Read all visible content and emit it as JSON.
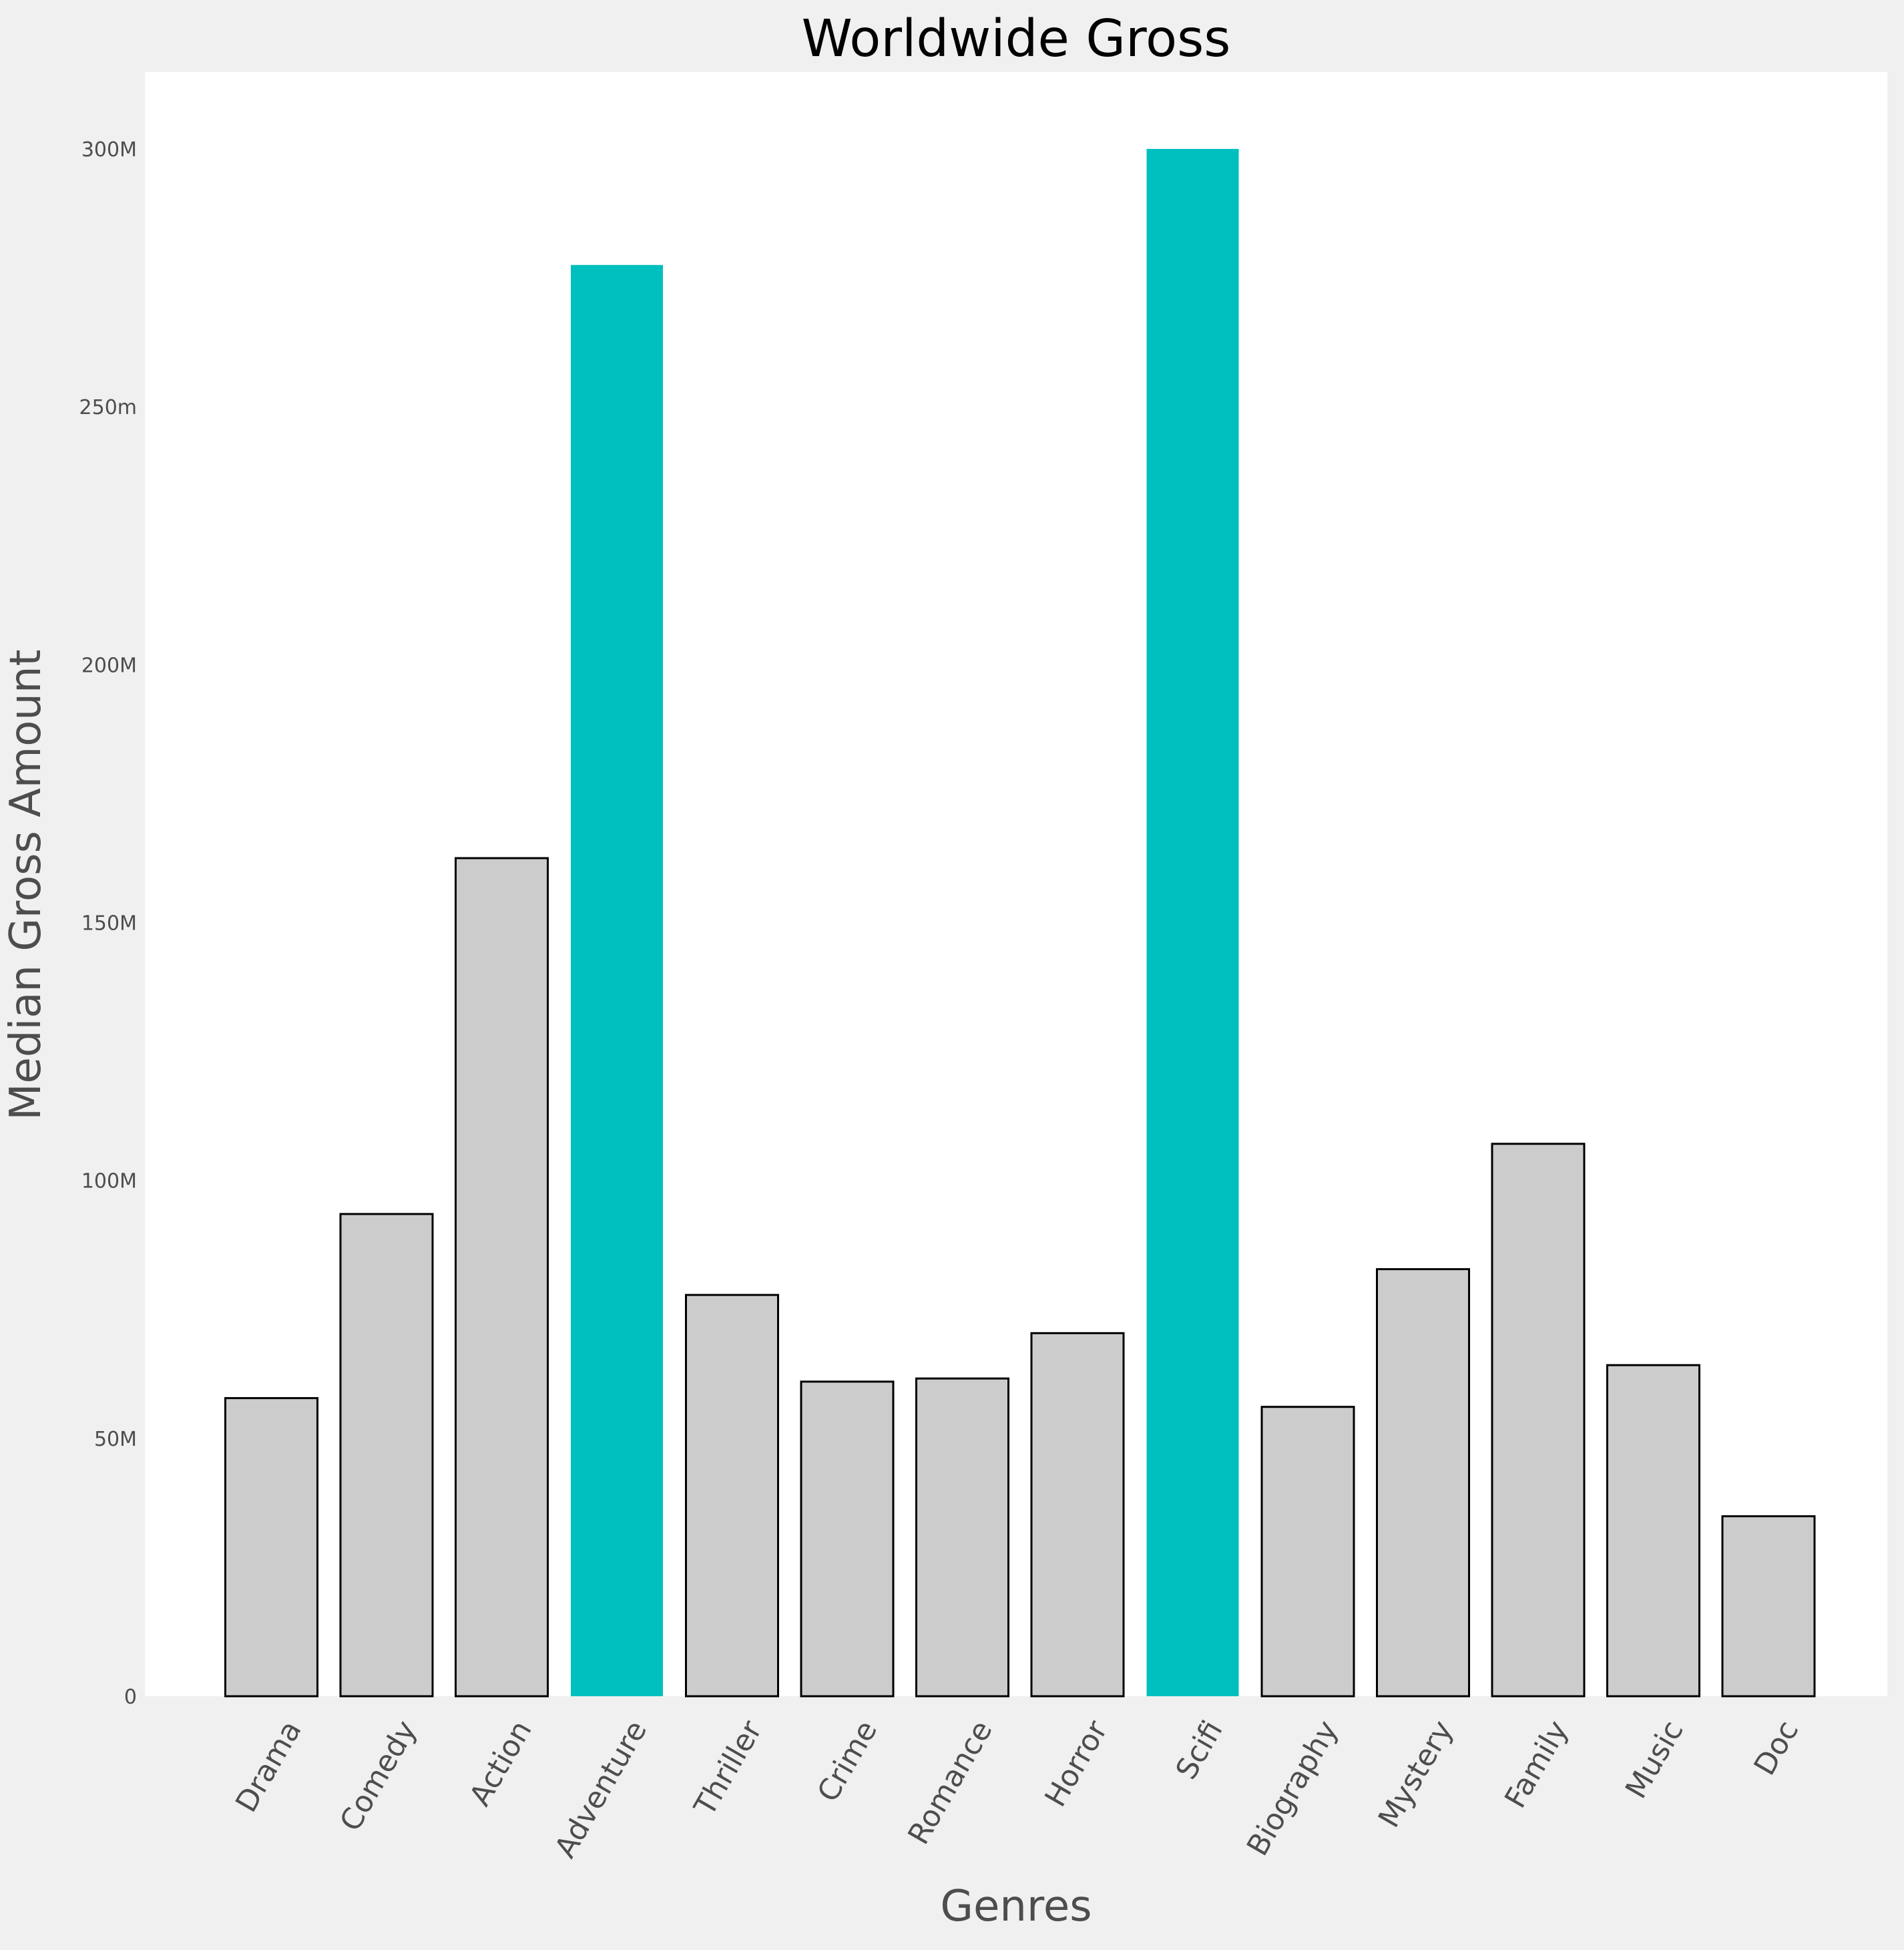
{
  "chart_data": {
    "type": "bar",
    "title": "Worldwide Gross",
    "xlabel": "Genres",
    "ylabel": "Median Gross Amount",
    "categories": [
      "Drama",
      "Comedy",
      "Action",
      "Adventure",
      "Thriller",
      "Crime",
      "Romance",
      "Horror",
      "Scifi",
      "Biography",
      "Mystery",
      "Family",
      "Music",
      "Doc"
    ],
    "values": [
      57800000,
      93500000,
      162500000,
      277500000,
      77800000,
      61000000,
      61600000,
      70400000,
      300000000,
      56100000,
      82800000,
      107100000,
      64200000,
      34900000
    ],
    "highlighted": [
      "Adventure",
      "Scifi"
    ],
    "ylim": [
      0,
      315000000
    ],
    "yticks": [
      0,
      50000000,
      100000000,
      150000000,
      200000000,
      250000000,
      300000000
    ],
    "ytick_labels": [
      "0",
      "50M",
      "100M",
      "150M",
      "200M",
      "250m",
      "300M"
    ],
    "grid": false,
    "colors": {
      "bar": "#cccccc",
      "bar_edge": "#000000",
      "highlight": "#00bfbf",
      "plot_background": "#ffffff",
      "figure_background": "#f0f0f0",
      "text": "#4d4d4d",
      "title": "#000000"
    }
  }
}
